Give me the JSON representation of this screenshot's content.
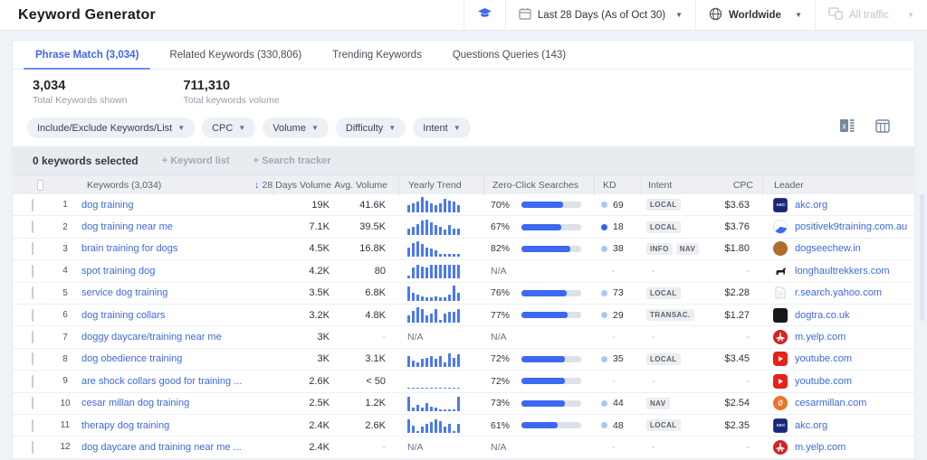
{
  "colors": {
    "accent_blue": "#3e68f0",
    "link_blue": "#3e68e0",
    "trend_bar_blue": "#4a79f2",
    "kd_dot_light": "#a9c7fb",
    "kd_dot_solid": "#2e63ee",
    "zero_click_fill": "#3e68f0",
    "yelp_red": "#d32323",
    "youtube_red": "#e62117"
  },
  "icons": {
    "education-icon": "graduation-cap",
    "calendar-icon": "calendar",
    "globe-icon": "globe",
    "traffic-icon": "devices",
    "excel-export-icon": "spreadsheet-x",
    "columns-icon": "table-columns",
    "sort-desc-icon": "down-arrow"
  },
  "header": {
    "title": "Keyword Generator",
    "date_selector": "Last 28 Days (As of Oct 30)",
    "region_selector": "Worldwide",
    "traffic_selector": "All traffic"
  },
  "tabs": [
    {
      "label": "Phrase Match (3,034)",
      "active": true
    },
    {
      "label": "Related Keywords (330,806)",
      "active": false
    },
    {
      "label": "Trending Keywords",
      "active": false
    },
    {
      "label": "Questions Queries (143)",
      "active": false
    }
  ],
  "stats": [
    {
      "value": "3,034",
      "label": "Total Keywords shown"
    },
    {
      "value": "711,310",
      "label": "Total keywords volume"
    }
  ],
  "filters": [
    "Include/Exclude Keywords/List",
    "CPC",
    "Volume",
    "Difficulty",
    "Intent"
  ],
  "selection_bar": {
    "selected_text": "0 keywords selected",
    "keyword_list_label": "+ Keyword list",
    "search_tracker_label": "+ Search tracker"
  },
  "table": {
    "columns": {
      "keywords": "Keywords (3,034)",
      "vol28": "28 Days Volume",
      "avg": "Avg. Volume",
      "trend": "Yearly Trend",
      "zero_click": "Zero-Click Searches",
      "kd": "KD",
      "intent": "Intent",
      "cpc": "CPC",
      "leader": "Leader"
    },
    "sort_column": "28 Days Volume",
    "rows": [
      {
        "index": 1,
        "keyword": "dog training",
        "vol28": "19K",
        "avg": "41.6K",
        "trend": [
          5,
          6,
          7,
          10,
          8,
          6,
          5,
          6,
          9,
          8,
          7,
          5
        ],
        "zero_click": 70,
        "kd": 69,
        "kd_dot": "light",
        "intent": [
          "LOCAL"
        ],
        "cpc": "$3.63",
        "leader": "akc.org",
        "favicon": "akc"
      },
      {
        "index": 2,
        "keyword": "dog training near me",
        "vol28": "7.1K",
        "avg": "39.5K",
        "trend": [
          4,
          5,
          7,
          9,
          10,
          8,
          6,
          5,
          3,
          6,
          4,
          4
        ],
        "zero_click": 67,
        "kd": 18,
        "kd_dot": "solid",
        "intent": [
          "LOCAL"
        ],
        "cpc": "$3.76",
        "leader": "positivek9training.com.au",
        "favicon": "positivek9"
      },
      {
        "index": 3,
        "keyword": "brain training for dogs",
        "vol28": "4.5K",
        "avg": "16.8K",
        "trend": [
          6,
          9,
          10,
          8,
          6,
          5,
          4,
          2,
          2,
          2,
          2,
          2
        ],
        "zero_click": 82,
        "kd": 38,
        "kd_dot": "light",
        "intent": [
          "INFO",
          "NAV"
        ],
        "cpc": "$1.80",
        "leader": "dogseechew.in",
        "favicon": "dogseechew"
      },
      {
        "index": 4,
        "keyword": "spot training dog",
        "vol28": "4.2K",
        "avg": "80",
        "trend": [
          2,
          7,
          9,
          8,
          7,
          9,
          9,
          9,
          9,
          9,
          9,
          9
        ],
        "zero_click": null,
        "kd": null,
        "kd_dot": null,
        "intent": [],
        "cpc": "-",
        "leader": "longhaultrekkers.com",
        "favicon": "longhaul"
      },
      {
        "index": 5,
        "keyword": "service dog training",
        "vol28": "3.5K",
        "avg": "6.8K",
        "trend": [
          9,
          5,
          4,
          3,
          2,
          2,
          3,
          2,
          2,
          4,
          10,
          5
        ],
        "zero_click": 76,
        "kd": 73,
        "kd_dot": "light",
        "intent": [
          "LOCAL"
        ],
        "cpc": "$2.28",
        "leader": "r.search.yahoo.com",
        "favicon": "yahoo-doc"
      },
      {
        "index": 6,
        "keyword": "dog training collars",
        "vol28": "3.2K",
        "avg": "4.8K",
        "trend": [
          5,
          8,
          10,
          9,
          5,
          6,
          9,
          2,
          6,
          7,
          7,
          9
        ],
        "zero_click": 77,
        "kd": 29,
        "kd_dot": "light",
        "intent": [
          "TRANSAC."
        ],
        "cpc": "$1.27",
        "leader": "dogtra.co.uk",
        "favicon": "dogtra"
      },
      {
        "index": 7,
        "keyword": "doggy daycare/training near me",
        "vol28": "3K",
        "avg": "-",
        "trend": null,
        "zero_click": null,
        "kd": null,
        "kd_dot": null,
        "intent": [],
        "cpc": "-",
        "leader": "m.yelp.com",
        "favicon": "yelp"
      },
      {
        "index": 8,
        "keyword": "dog obedience training",
        "vol28": "3K",
        "avg": "3.1K",
        "trend": [
          7,
          4,
          3,
          5,
          6,
          7,
          5,
          7,
          3,
          9,
          6,
          8
        ],
        "zero_click": 72,
        "kd": 35,
        "kd_dot": "light",
        "intent": [
          "LOCAL"
        ],
        "cpc": "$3.45",
        "leader": "youtube.com",
        "favicon": "youtube"
      },
      {
        "index": 9,
        "keyword": "are shock collars good for training ...",
        "vol28": "2.6K",
        "avg": "< 50",
        "trend": [
          0.6,
          0.6,
          0.6,
          0.6,
          0.6,
          0.6,
          0.6,
          0.6,
          0.6,
          0.6,
          0.6,
          0.6
        ],
        "zero_click": 72,
        "kd": null,
        "kd_dot": null,
        "intent": [],
        "cpc": "-",
        "leader": "youtube.com",
        "favicon": "youtube"
      },
      {
        "index": 10,
        "keyword": "cesar millan dog training",
        "vol28": "2.5K",
        "avg": "1.2K",
        "trend": [
          9,
          2,
          4,
          2,
          5,
          3,
          2,
          1,
          1,
          1,
          1,
          9
        ],
        "zero_click": 73,
        "kd": 44,
        "kd_dot": "light",
        "intent": [
          "NAV"
        ],
        "cpc": "$2.54",
        "leader": "cesarmillan.com",
        "favicon": "cesarmillan"
      },
      {
        "index": 11,
        "keyword": "therapy dog training",
        "vol28": "2.4K",
        "avg": "2.6K",
        "trend": [
          9,
          5,
          1,
          4,
          6,
          7,
          9,
          8,
          4,
          6,
          1,
          6
        ],
        "zero_click": 61,
        "kd": 48,
        "kd_dot": "light",
        "intent": [
          "LOCAL"
        ],
        "cpc": "$2.35",
        "leader": "akc.org",
        "favicon": "akc"
      },
      {
        "index": 12,
        "keyword": "dog daycare and training near me ...",
        "vol28": "2.4K",
        "avg": "-",
        "trend": null,
        "zero_click": null,
        "kd": null,
        "kd_dot": null,
        "intent": [],
        "cpc": "-",
        "leader": "m.yelp.com",
        "favicon": "yelp"
      }
    ]
  }
}
